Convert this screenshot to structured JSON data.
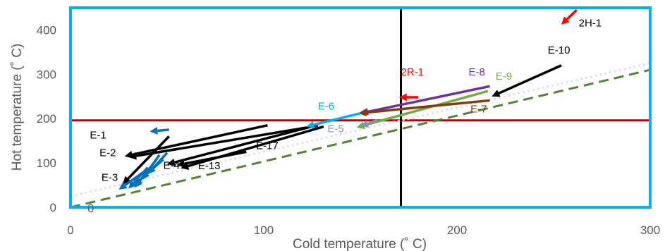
{
  "chart_data": {
    "type": "scatter",
    "title": "",
    "xlabel": "Cold temperature (˚ C)",
    "ylabel": "Hot temperature (˚ C)",
    "xlim": [
      0,
      300
    ],
    "ylim": [
      0,
      450
    ],
    "x_ticks": [
      "0",
      "100",
      "200",
      "300"
    ],
    "y_ticks": [
      "0",
      "100",
      "200",
      "300",
      "400"
    ],
    "grid": false,
    "legend": "none",
    "reference_lines": [
      {
        "kind": "horizontal",
        "y": 196,
        "color": "#c00000"
      },
      {
        "kind": "vertical",
        "x": 171,
        "color": "#000000"
      },
      {
        "kind": "dashed",
        "from": [
          0,
          0
        ],
        "to": [
          300,
          310
        ],
        "color": "#548235"
      },
      {
        "kind": "dotted",
        "from": [
          0,
          25
        ],
        "to": [
          300,
          325
        ],
        "color": "#d9e1f2"
      }
    ],
    "origin_label": "0",
    "arrows": [
      {
        "label": "E-1",
        "color": "#000000",
        "from": [
          102,
          185
        ],
        "to": [
          28,
          115
        ]
      },
      {
        "label": "E-2",
        "color": "#000000",
        "from": [
          128,
          184
        ],
        "to": [
          30,
          113
        ]
      },
      {
        "label": "E-3",
        "color": "#000000",
        "from": [
          51,
          160
        ],
        "to": [
          27,
          52
        ]
      },
      {
        "label": "E-4",
        "color": "#000000",
        "from": [
          123,
          180
        ],
        "to": [
          50,
          97
        ]
      },
      {
        "label": "E-13",
        "color": "#000000",
        "from": [
          131,
          182
        ],
        "to": [
          57,
          88
        ]
      },
      {
        "label": "E-17",
        "color": "#000000",
        "from": [
          91,
          125
        ],
        "to": [
          55,
          95
        ]
      },
      {
        "label": "E-10",
        "color": "#000000",
        "from": [
          254,
          320
        ],
        "to": [
          218,
          250
        ]
      },
      {
        "label": "E-8",
        "color": "#7030a0",
        "from": [
          217,
          273
        ],
        "to": [
          150,
          212
        ]
      },
      {
        "label": "E-9",
        "color": "#70ad47",
        "from": [
          216,
          262
        ],
        "to": [
          148,
          180
        ]
      },
      {
        "label": "E-7",
        "color": "#843c0c",
        "from": [
          217,
          241
        ],
        "to": [
          149,
          212
        ]
      },
      {
        "label": "E-6",
        "color": "#00b0f0",
        "from": [
          150,
          212
        ],
        "to": [
          122,
          182
        ]
      },
      {
        "label": "E-5",
        "color": "#8497b0",
        "from": [
          159,
          197
        ],
        "to": [
          150,
          182
        ]
      },
      {
        "label": "2R-1",
        "color": "#ff0000",
        "from": [
          180,
          248
        ],
        "to": [
          170,
          248
        ]
      },
      {
        "label": "2H-1",
        "color": "#ff0000",
        "from": [
          262,
          445
        ],
        "to": [
          254,
          412
        ]
      },
      {
        "label": "",
        "color": "#0070c0",
        "from": [
          51,
          175
        ],
        "to": [
          41,
          171
        ]
      },
      {
        "label": "",
        "color": "#0070c0",
        "from": [
          48,
          108
        ],
        "to": [
          33,
          50
        ]
      },
      {
        "label": "",
        "color": "#0070c0",
        "from": [
          44,
          105
        ],
        "to": [
          33,
          44
        ]
      },
      {
        "label": "",
        "color": "#0070c0",
        "from": [
          40,
          90
        ],
        "to": [
          30,
          42
        ]
      },
      {
        "label": "",
        "color": "#0070c0",
        "from": [
          46,
          118
        ],
        "to": [
          37,
          62
        ]
      },
      {
        "label": "",
        "color": "#0070c0",
        "from": [
          50,
          123
        ],
        "to": [
          40,
          75
        ]
      },
      {
        "label": "",
        "color": "#0070c0",
        "from": [
          38,
          80
        ],
        "to": [
          25,
          40
        ]
      }
    ],
    "labels": [
      {
        "text": "E-1",
        "color": "#000000",
        "x": 10,
        "y": 155
      },
      {
        "text": "E-2",
        "color": "#000000",
        "x": 15,
        "y": 115
      },
      {
        "text": "E-3",
        "color": "#000000",
        "x": 16,
        "y": 60
      },
      {
        "text": "E-4",
        "color": "#000000",
        "x": 48,
        "y": 87
      },
      {
        "text": "E-13",
        "color": "#000000",
        "x": 66,
        "y": 86
      },
      {
        "text": "E-17",
        "color": "#000000",
        "x": 96,
        "y": 131
      },
      {
        "text": "E-10",
        "color": "#000000",
        "x": 247,
        "y": 347
      },
      {
        "text": "E-8",
        "color": "#7030a0",
        "x": 206,
        "y": 297
      },
      {
        "text": "E-9",
        "color": "#70ad47",
        "x": 220,
        "y": 288
      },
      {
        "text": "E-7",
        "color": "#843c0c",
        "x": 207,
        "y": 214
      },
      {
        "text": "E-6",
        "color": "#00b0f0",
        "x": 128,
        "y": 220
      },
      {
        "text": "E-5",
        "color": "#8497b0",
        "x": 133,
        "y": 169
      },
      {
        "text": "2R-1",
        "color": "#ff0000",
        "x": 171,
        "y": 297
      },
      {
        "text": "2H-1",
        "color": "#000000",
        "x": 263,
        "y": 408
      }
    ],
    "colors": {
      "plot_frame": "#00b0f0",
      "hot_utility_line": "#c00000",
      "pinch_line": "#000000",
      "dashed_line": "#548235",
      "dotted_line": "#d9e1f2"
    }
  }
}
